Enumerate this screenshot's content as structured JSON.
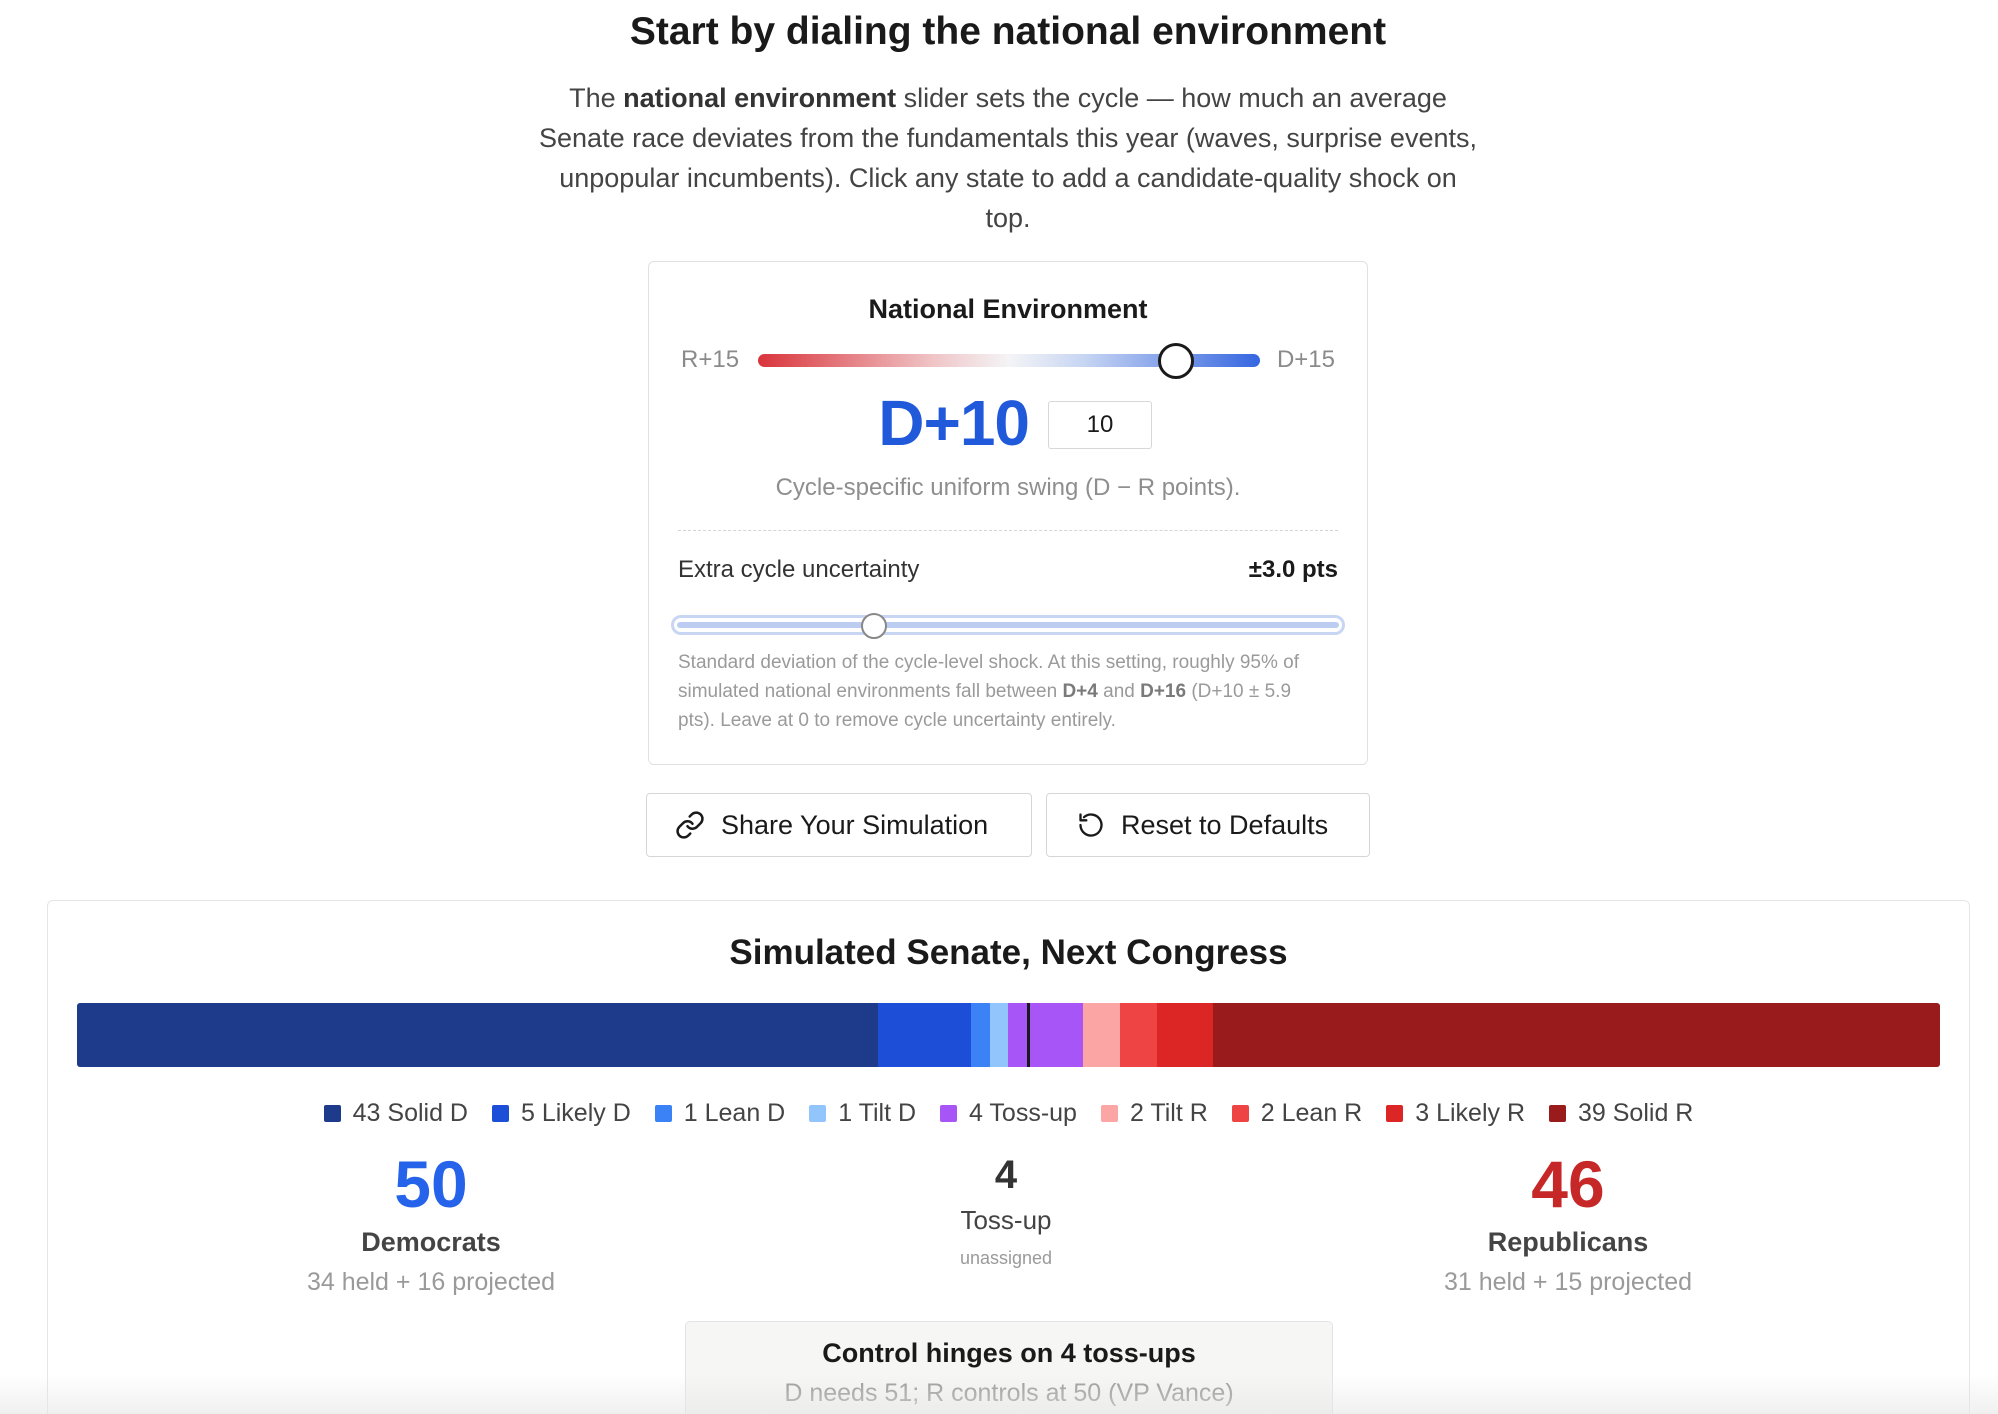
{
  "headline": "Start by dialing the national environment",
  "intro": {
    "before": "The ",
    "bold": "national environment",
    "after": " slider sets the cycle — how much an average Senate race deviates from the fundamentals this year (waves, surprise events, unpopular incumbents). Click any state to add a candidate-quality shock on top."
  },
  "national_environment": {
    "title": "National Environment",
    "left_label": "R+15",
    "right_label": "D+15",
    "value_display": "D+10",
    "input_value": "10",
    "slider_value": 10,
    "slider_range": [
      -15,
      15
    ],
    "caption": "Cycle-specific uniform swing (D − R points).",
    "uncertainty": {
      "label": "Extra cycle uncertainty",
      "value_display": "±3.0 pts",
      "slider_fraction": 0.3,
      "note_before": "Standard deviation of the cycle-level shock. At this setting, roughly 95% of simulated national environments fall between ",
      "note_low": "D+4",
      "note_mid": " and ",
      "note_high": "D+16",
      "note_after": " (D+10 ± 5.9 pts). Leave at 0 to remove cycle uncertainty entirely."
    }
  },
  "buttons": {
    "share": "Share Your Simulation",
    "reset": "Reset to Defaults"
  },
  "senate": {
    "title": "Simulated Senate, Next Congress",
    "categories": [
      {
        "label": "43 Solid D",
        "seats": 43,
        "color": "#1e3a8a"
      },
      {
        "label": "5 Likely D",
        "seats": 5,
        "color": "#1d4ed8"
      },
      {
        "label": "1 Lean D",
        "seats": 1,
        "color": "#3b82f6"
      },
      {
        "label": "1 Tilt D",
        "seats": 1,
        "color": "#93c5fd"
      },
      {
        "label": "4 Toss-up",
        "seats": 4,
        "color": "#a855f7"
      },
      {
        "label": "2 Tilt R",
        "seats": 2,
        "color": "#fca5a5"
      },
      {
        "label": "2 Lean R",
        "seats": 2,
        "color": "#ef4444"
      },
      {
        "label": "3 Likely R",
        "seats": 3,
        "color": "#dc2626"
      },
      {
        "label": "39 Solid R",
        "seats": 39,
        "color": "#991b1b"
      }
    ],
    "democrats": {
      "count": "50",
      "name": "Democrats",
      "detail": "34 held + 16 projected",
      "color": "#2563eb"
    },
    "tossup": {
      "count": "4",
      "name": "Toss-up",
      "detail": "unassigned"
    },
    "republicans": {
      "count": "46",
      "name": "Republicans",
      "detail": "31 held + 15 projected",
      "color": "#c62828"
    },
    "control": {
      "title": "Control hinges on 4 toss-ups",
      "subtitle": "D needs 51; R controls at 50 (VP Vance)"
    }
  }
}
